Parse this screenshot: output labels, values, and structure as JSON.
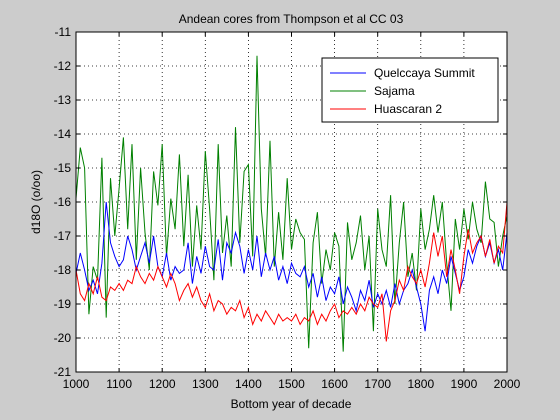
{
  "chart_data": {
    "type": "line",
    "title": "Andean cores from Thompson et al CC 03",
    "xlabel": "Bottom year of decade",
    "ylabel": "d18O (o/oo)",
    "xlim": [
      1000,
      2000
    ],
    "ylim": [
      -21,
      -11
    ],
    "xticks": [
      1000,
      1100,
      1200,
      1300,
      1400,
      1500,
      1600,
      1700,
      1800,
      1900,
      2000
    ],
    "yticks": [
      -11,
      -12,
      -13,
      -14,
      -15,
      -16,
      -17,
      -18,
      -19,
      -20,
      -21
    ],
    "grid": true,
    "legend": "top-right",
    "series": [
      {
        "name": "Quelccaya Summit",
        "color": "#0000ff",
        "x": [
          1000,
          1010,
          1020,
          1030,
          1040,
          1050,
          1060,
          1070,
          1080,
          1090,
          1100,
          1110,
          1120,
          1130,
          1140,
          1150,
          1160,
          1170,
          1180,
          1190,
          1200,
          1210,
          1220,
          1230,
          1240,
          1250,
          1260,
          1270,
          1280,
          1290,
          1300,
          1310,
          1320,
          1330,
          1340,
          1350,
          1360,
          1370,
          1380,
          1390,
          1400,
          1410,
          1420,
          1430,
          1440,
          1450,
          1460,
          1470,
          1480,
          1490,
          1500,
          1510,
          1520,
          1530,
          1540,
          1550,
          1560,
          1570,
          1580,
          1590,
          1600,
          1610,
          1620,
          1630,
          1640,
          1650,
          1660,
          1670,
          1680,
          1690,
          1700,
          1710,
          1720,
          1730,
          1740,
          1750,
          1760,
          1770,
          1780,
          1790,
          1800,
          1810,
          1820,
          1830,
          1840,
          1850,
          1860,
          1870,
          1880,
          1890,
          1900,
          1910,
          1920,
          1930,
          1940,
          1950,
          1960,
          1970,
          1980,
          1990,
          2000
        ],
        "values": [
          -18.1,
          -17.5,
          -18.0,
          -18.6,
          -18.3,
          -18.7,
          -17.8,
          -16.0,
          -17.2,
          -17.6,
          -17.9,
          -17.7,
          -17.0,
          -17.4,
          -18.0,
          -17.6,
          -17.2,
          -17.8,
          -17.0,
          -17.9,
          -18.2,
          -17.5,
          -18.3,
          -17.9,
          -18.1,
          -18.0,
          -17.2,
          -18.4,
          -17.6,
          -18.1,
          -17.3,
          -17.9,
          -18.0,
          -17.1,
          -18.3,
          -17.2,
          -17.5,
          -16.9,
          -17.3,
          -18.1,
          -17.4,
          -18.0,
          -17.0,
          -18.2,
          -17.5,
          -18.0,
          -17.6,
          -18.3,
          -17.9,
          -18.4,
          -17.8,
          -18.1,
          -18.2,
          -17.9,
          -18.5,
          -18.1,
          -18.8,
          -18.2,
          -18.9,
          -18.5,
          -18.7,
          -18.2,
          -19.0,
          -18.5,
          -18.8,
          -19.2,
          -18.6,
          -18.9,
          -18.3,
          -19.1,
          -18.7,
          -19.0,
          -18.6,
          -19.1,
          -18.4,
          -19.0,
          -18.6,
          -18.4,
          -18.0,
          -18.5,
          -19.0,
          -19.8,
          -18.6,
          -18.2,
          -18.7,
          -18.0,
          -18.4,
          -17.6,
          -18.1,
          -18.6,
          -18.2,
          -17.4,
          -17.8,
          -17.3,
          -17.0,
          -17.6,
          -17.2,
          -17.8,
          -17.4,
          -18.0,
          -16.9
        ]
      },
      {
        "name": "Sajama",
        "color": "#008000",
        "x": [
          1000,
          1010,
          1020,
          1030,
          1040,
          1050,
          1060,
          1070,
          1080,
          1090,
          1100,
          1110,
          1120,
          1130,
          1140,
          1150,
          1160,
          1170,
          1180,
          1190,
          1200,
          1210,
          1220,
          1230,
          1240,
          1250,
          1260,
          1270,
          1280,
          1290,
          1300,
          1310,
          1320,
          1330,
          1340,
          1350,
          1360,
          1370,
          1380,
          1390,
          1400,
          1410,
          1420,
          1430,
          1440,
          1450,
          1460,
          1470,
          1480,
          1490,
          1500,
          1510,
          1520,
          1530,
          1540,
          1550,
          1560,
          1570,
          1580,
          1590,
          1600,
          1610,
          1620,
          1630,
          1640,
          1650,
          1660,
          1670,
          1680,
          1690,
          1700,
          1710,
          1720,
          1730,
          1740,
          1750,
          1760,
          1770,
          1780,
          1790,
          1800,
          1810,
          1820,
          1830,
          1840,
          1850,
          1860,
          1870,
          1880,
          1890,
          1900,
          1910,
          1920,
          1930,
          1940,
          1950,
          1960,
          1970,
          1980,
          1990,
          2000
        ],
        "values": [
          -15.9,
          -14.4,
          -15.0,
          -19.3,
          -17.9,
          -18.3,
          -14.7,
          -19.4,
          -15.3,
          -17.0,
          -15.6,
          -14.1,
          -16.8,
          -14.3,
          -17.7,
          -15.0,
          -16.9,
          -18.0,
          -15.1,
          -16.1,
          -14.3,
          -17.6,
          -15.9,
          -16.8,
          -14.6,
          -17.3,
          -15.2,
          -17.9,
          -16.1,
          -17.4,
          -14.5,
          -16.2,
          -18.3,
          -14.3,
          -17.5,
          -16.4,
          -17.9,
          -13.8,
          -17.2,
          -15.1,
          -14.9,
          -17.6,
          -11.7,
          -16.2,
          -17.6,
          -14.2,
          -17.9,
          -16.3,
          -17.7,
          -15.3,
          -17.4,
          -16.5,
          -16.9,
          -17.1,
          -20.3,
          -17.2,
          -16.3,
          -18.4,
          -17.4,
          -18.0,
          -16.9,
          -17.3,
          -20.4,
          -16.6,
          -17.7,
          -17.2,
          -16.4,
          -18.0,
          -17.0,
          -19.8,
          -16.2,
          -17.4,
          -17.9,
          -15.8,
          -19.0,
          -17.2,
          -16.0,
          -18.2,
          -17.5,
          -18.6,
          -16.2,
          -17.4,
          -16.8,
          -15.8,
          -16.9,
          -16.0,
          -17.8,
          -19.2,
          -16.5,
          -17.4,
          -16.2,
          -17.1,
          -16.0,
          -16.8,
          -17.2,
          -15.4,
          -16.5,
          -16.6,
          -17.9,
          -17.0,
          -16.4
        ]
      },
      {
        "name": "Huascaran 2",
        "color": "#ff0000",
        "x": [
          1000,
          1010,
          1020,
          1030,
          1040,
          1050,
          1060,
          1070,
          1080,
          1090,
          1100,
          1110,
          1120,
          1130,
          1140,
          1150,
          1160,
          1170,
          1180,
          1190,
          1200,
          1210,
          1220,
          1230,
          1240,
          1250,
          1260,
          1270,
          1280,
          1290,
          1300,
          1310,
          1320,
          1330,
          1340,
          1350,
          1360,
          1370,
          1380,
          1390,
          1400,
          1410,
          1420,
          1430,
          1440,
          1450,
          1460,
          1470,
          1480,
          1490,
          1500,
          1510,
          1520,
          1530,
          1540,
          1550,
          1560,
          1570,
          1580,
          1590,
          1600,
          1610,
          1620,
          1630,
          1640,
          1650,
          1660,
          1670,
          1680,
          1690,
          1700,
          1710,
          1720,
          1730,
          1740,
          1750,
          1760,
          1770,
          1780,
          1790,
          1800,
          1810,
          1820,
          1830,
          1840,
          1850,
          1860,
          1870,
          1880,
          1890,
          1900,
          1910,
          1920,
          1930,
          1940,
          1950,
          1960,
          1970,
          1980,
          1990,
          2000
        ],
        "values": [
          -18.0,
          -18.7,
          -18.9,
          -18.4,
          -18.7,
          -18.2,
          -18.8,
          -18.9,
          -18.5,
          -18.6,
          -18.4,
          -18.6,
          -18.3,
          -18.4,
          -17.9,
          -18.2,
          -18.4,
          -18.1,
          -18.3,
          -17.9,
          -18.2,
          -18.5,
          -18.1,
          -18.4,
          -18.9,
          -18.6,
          -18.4,
          -18.8,
          -18.5,
          -18.9,
          -19.1,
          -18.7,
          -19.2,
          -18.9,
          -19.0,
          -19.3,
          -19.1,
          -19.2,
          -18.9,
          -19.4,
          -19.1,
          -19.6,
          -19.3,
          -19.5,
          -19.2,
          -19.4,
          -19.6,
          -19.3,
          -19.5,
          -19.4,
          -19.5,
          -19.3,
          -19.6,
          -19.4,
          -19.5,
          -19.2,
          -19.6,
          -19.3,
          -19.5,
          -19.2,
          -19.0,
          -19.4,
          -19.2,
          -19.3,
          -19.1,
          -19.3,
          -19.0,
          -19.2,
          -18.8,
          -19.0,
          -19.1,
          -18.7,
          -20.1,
          -19.2,
          -18.9,
          -18.3,
          -18.6,
          -17.9,
          -18.2,
          -18.4,
          -18.0,
          -18.5,
          -17.8,
          -16.9,
          -17.6,
          -17.0,
          -18.2,
          -17.4,
          -18.0,
          -18.7,
          -17.6,
          -16.8,
          -17.5,
          -17.2,
          -17.0,
          -17.6,
          -17.1,
          -17.8,
          -17.3,
          -17.5,
          -16.0
        ]
      }
    ]
  }
}
